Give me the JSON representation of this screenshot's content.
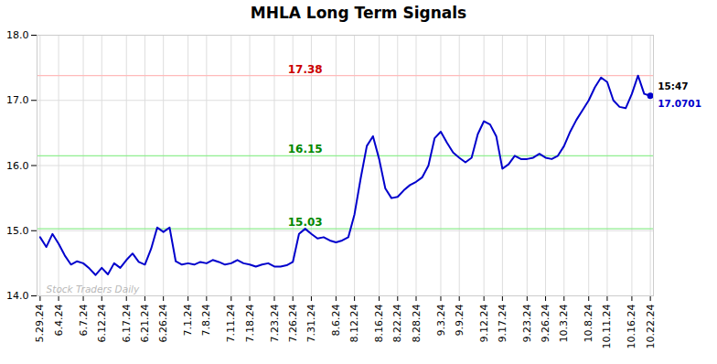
{
  "chart_data": {
    "type": "line",
    "title": "MHLA Long Term Signals",
    "categories": [
      "5.29.24",
      null,
      null,
      "6.4.24",
      null,
      null,
      null,
      "6.7.24",
      null,
      null,
      "6.12.24",
      null,
      null,
      null,
      "6.17.24",
      null,
      null,
      "6.21.24",
      null,
      null,
      "6.26.24",
      null,
      null,
      null,
      "7.1.24",
      null,
      null,
      "7.8.24",
      null,
      null,
      null,
      "7.11.24",
      null,
      null,
      "7.18.24",
      null,
      null,
      null,
      "7.23.24",
      null,
      null,
      "7.26.24",
      null,
      null,
      "7.31.24",
      null,
      null,
      null,
      "8.6.24",
      null,
      null,
      "8.12.24",
      null,
      null,
      null,
      "8.16.24",
      null,
      null,
      "8.22.24",
      null,
      null,
      "8.28.24",
      null,
      null,
      null,
      "9.3.24",
      null,
      null,
      "9.9.24",
      null,
      null,
      null,
      "9.12.24",
      null,
      null,
      "9.17.24",
      null,
      null,
      null,
      "9.23.24",
      null,
      null,
      "9.26.24",
      null,
      null,
      "10.3.24",
      null,
      null,
      null,
      "10.8.24",
      null,
      null,
      "10.11.24",
      null,
      null,
      null,
      "10.16.24",
      null,
      null,
      "10.22.24"
    ],
    "values": [
      14.9,
      14.75,
      14.95,
      14.8,
      14.62,
      14.48,
      14.53,
      14.5,
      14.42,
      14.32,
      14.43,
      14.33,
      14.5,
      14.43,
      14.55,
      14.65,
      14.52,
      14.48,
      14.72,
      15.05,
      14.98,
      15.05,
      14.53,
      14.48,
      14.5,
      14.48,
      14.52,
      14.5,
      14.55,
      14.52,
      14.48,
      14.5,
      14.55,
      14.5,
      14.48,
      14.45,
      14.48,
      14.5,
      14.45,
      14.45,
      14.47,
      14.52,
      14.95,
      15.03,
      14.95,
      14.88,
      14.9,
      14.85,
      14.82,
      14.85,
      14.9,
      15.25,
      15.8,
      16.3,
      16.45,
      16.1,
      15.65,
      15.5,
      15.52,
      15.62,
      15.7,
      15.75,
      15.82,
      16.0,
      16.42,
      16.52,
      16.35,
      16.2,
      16.12,
      16.05,
      16.12,
      16.48,
      16.68,
      16.63,
      16.45,
      15.95,
      16.02,
      16.15,
      16.1,
      16.1,
      16.12,
      16.18,
      16.12,
      16.1,
      16.15,
      16.3,
      16.52,
      16.7,
      16.85,
      17.0,
      17.2,
      17.35,
      17.28,
      17.0,
      16.9,
      16.88,
      17.1,
      17.38,
      17.1,
      17.07
    ],
    "color": "#0000cc",
    "ylim": [
      14,
      18
    ],
    "yticks": [
      14,
      15,
      16,
      17,
      18
    ],
    "grid": true,
    "reference_lines": [
      {
        "value": 17.38,
        "color": "#ffbbbb",
        "label": "17.38",
        "label_color": "#cc0000"
      },
      {
        "value": 16.15,
        "color": "#90ee90",
        "label": "16.15",
        "label_color": "#008800"
      },
      {
        "value": 15.03,
        "color": "#90ee90",
        "label": "15.03",
        "label_color": "#008800"
      }
    ],
    "last_point_labels": [
      {
        "text": "15:47",
        "color": "#000000"
      },
      {
        "text": "17.0701",
        "color": "#0000cc"
      }
    ],
    "watermark": {
      "text": "Stock Traders Daily",
      "color": "#aaaaaa"
    }
  }
}
